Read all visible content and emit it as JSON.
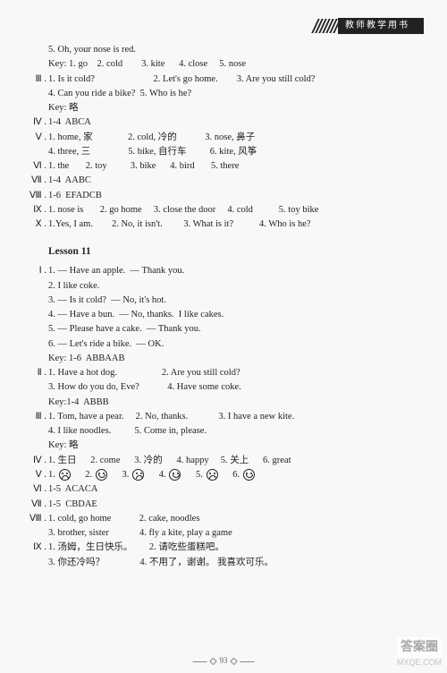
{
  "header": {
    "label": "教师教学用书"
  },
  "lines": [
    {
      "ind": 1,
      "t": "5. Oh, your nose is red."
    },
    {
      "ind": 1,
      "t": "Key: 1. go    2. cold        3. kite      4. close     5. nose"
    },
    {
      "rn": "Ⅲ .",
      "t": "1. Is it cold?                         2. Let's go home.        3. Are you still cold?"
    },
    {
      "ind": 1,
      "t": "4. Can you ride a bike?  5. Who is he?"
    },
    {
      "ind": 1,
      "t": "Key: 略"
    },
    {
      "rn": "Ⅳ .",
      "t": "1-4  ABCA"
    },
    {
      "rn": "Ⅴ .",
      "t": "1. home, 家               2. cold, 冷的            3. nose, 鼻子"
    },
    {
      "ind": 1,
      "t": "4. three, 三                5. bike, 自行车          6. kite, 风筝"
    },
    {
      "rn": "Ⅵ .",
      "t": "1. the       2. toy          3. bike      4. bird       5. there"
    },
    {
      "rn": "Ⅶ .",
      "t": "1-4  AABC"
    },
    {
      "rn": "Ⅷ .",
      "t": "1-6  EFADCB"
    },
    {
      "rn": "Ⅸ .",
      "t": "1. nose is       2. go home     3. close the door     4. cold           5. toy bike"
    },
    {
      "rn": "Ⅹ .",
      "t": "1.Yes, I am.        2. No, it isn't.         3. What is it?           4. Who is he?"
    }
  ],
  "lesson": {
    "title": "Lesson 11"
  },
  "lines2": [
    {
      "rn": "Ⅰ .",
      "t": "1. — Have an apple.  — Thank you."
    },
    {
      "ind": 1,
      "t": "2. I like coke."
    },
    {
      "ind": 1,
      "t": "3. — Is it cold?  — No, it's hot."
    },
    {
      "ind": 1,
      "t": "4. — Have a bun.  — No, thanks.  I like cakes."
    },
    {
      "ind": 1,
      "t": "5. — Please have a cake.  — Thank you."
    },
    {
      "ind": 1,
      "t": "6. — Let's ride a bike.  — OK."
    },
    {
      "ind": 1,
      "t": "Key: 1-6  ABBAAB"
    },
    {
      "rn": "Ⅱ .",
      "t": "1. Have a hot dog.                   2. Are you still cold?"
    },
    {
      "ind": 1,
      "t": "3. How do you do, Eve?            4. Have some coke."
    },
    {
      "ind": 1,
      "t": "Key:1-4  ABBB"
    },
    {
      "rn": "Ⅲ .",
      "t": "1. Tom, have a pear.     2. No, thanks.             3. I have a new kite."
    },
    {
      "ind": 1,
      "t": "4. I like noodles.          5. Come in, please."
    },
    {
      "ind": 1,
      "t": "Key: 略"
    },
    {
      "rn": "Ⅳ .",
      "t": "1. 生日      2. come      3. 冷的      4. happy     5. 关上      6. great"
    }
  ],
  "faces": {
    "rn": "Ⅴ .",
    "items": [
      {
        "n": "1.",
        "mood": "sad"
      },
      {
        "n": "2.",
        "mood": "smile"
      },
      {
        "n": "3.",
        "mood": "sad"
      },
      {
        "n": "4.",
        "mood": "smile"
      },
      {
        "n": "5.",
        "mood": "sad"
      },
      {
        "n": "6.",
        "mood": "smile"
      }
    ]
  },
  "lines3": [
    {
      "rn": "Ⅵ .",
      "t": "1-5  ACACA"
    },
    {
      "rn": "Ⅶ .",
      "t": "1-5  CBDAE"
    },
    {
      "rn": "Ⅷ .",
      "t": "1. cold, go home            2. cake, noodles"
    },
    {
      "ind": 1,
      "t": "3. brother, sister             4. fly a kite, play a game"
    },
    {
      "rn": "Ⅸ .",
      "t": "1. 汤姆，生日快乐。       2. 请吃些蛋糕吧。"
    },
    {
      "ind": 1,
      "t": "3. 你还冷吗？               4. 不用了，谢谢。 我喜欢可乐。"
    }
  ],
  "footer": {
    "page": "93"
  },
  "watermark": {
    "top": "答案圈",
    "bottom": "MXQE.COM"
  }
}
